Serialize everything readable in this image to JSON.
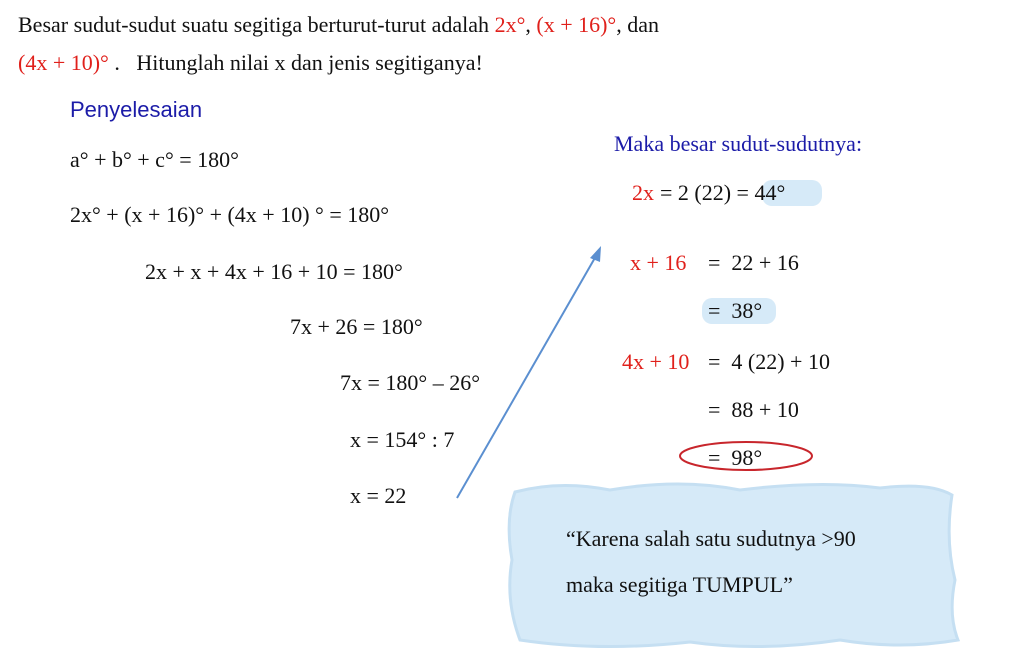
{
  "question": {
    "line1": [
      "Besar sudut-sudut suatu segitiga berturut-turut adalah ",
      "2x°",
      ", ",
      "(x + 16)°",
      ", dan"
    ],
    "line2": [
      "(4x + 10)°",
      " .   Hitunglah nilai x dan jenis segitiganya!"
    ]
  },
  "solution": {
    "heading": "Penyelesaian",
    "steps": [
      "a° + b° + c° = 180°",
      "2x° + (x + 16)° + (4x + 10) ° = 180°",
      "2x + x + 4x + 16 + 10 = 180°",
      "7x + 26 = 180°",
      "7x = 180° – 26°",
      "x = 154° : 7",
      "x = 22"
    ]
  },
  "angles": {
    "heading": "Maka besar sudut-sudutnya:",
    "rows": [
      {
        "label": "2x",
        "expr": "= 2 (22) = 44°"
      },
      {
        "label": "x + 16",
        "expr": "=  22 + 16"
      },
      {
        "expr": "=  38°"
      },
      {
        "label": "4x + 10",
        "expr": "=  4 (22) + 10"
      },
      {
        "expr": "=  88 + 10"
      },
      {
        "expr": "=  98°"
      }
    ]
  },
  "conclusion": {
    "lines": [
      "“Karena salah satu sudutnya >90",
      "maka segitiga TUMPUL”"
    ]
  }
}
